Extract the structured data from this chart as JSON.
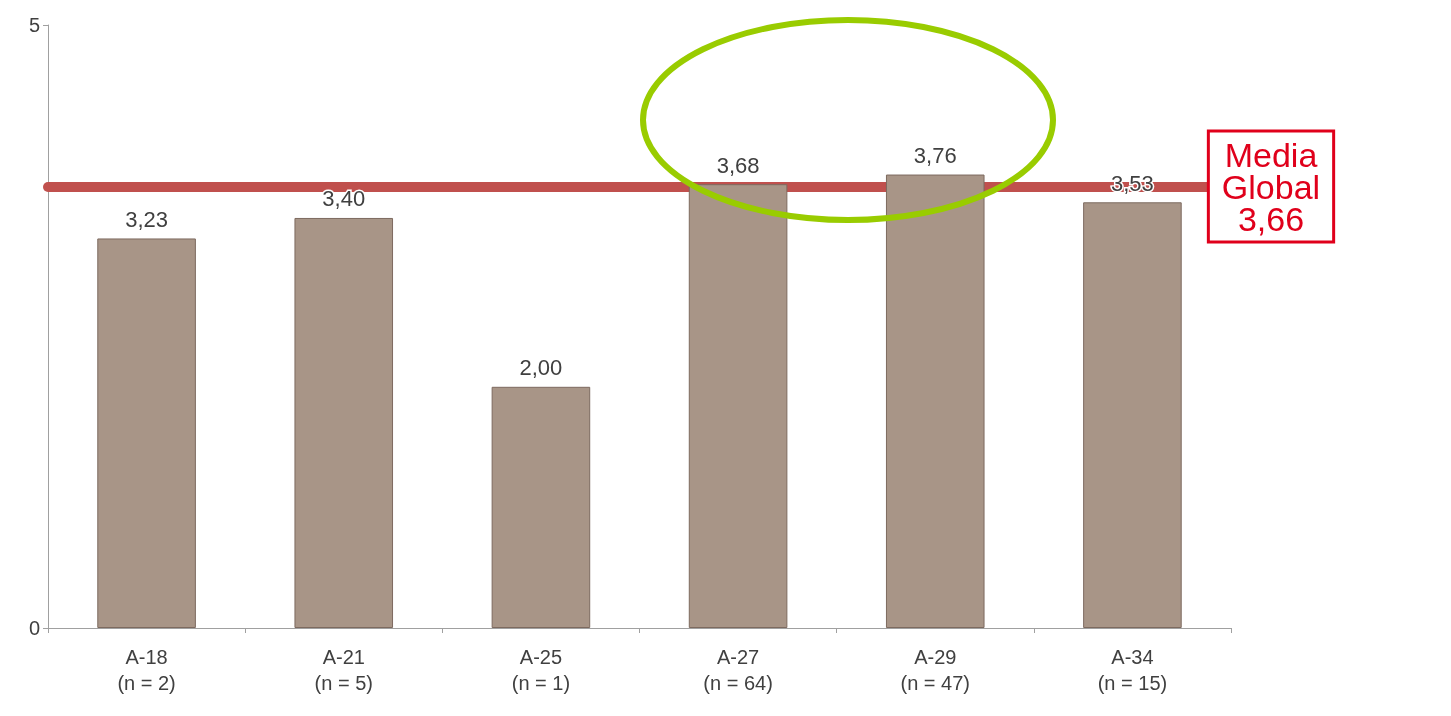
{
  "chart_data": {
    "type": "bar",
    "categories": [
      "A-18\n(n = 2)",
      "A-21\n(n = 5)",
      "A-25\n(n = 1)",
      "A-27\n(n = 64)",
      "A-29\n(n = 47)",
      "A-34\n(n = 15)"
    ],
    "values": [
      3.23,
      3.4,
      2.0,
      3.68,
      3.76,
      3.53
    ],
    "value_labels": [
      "3,23",
      "3,40",
      "2,00",
      "3,68",
      "3,76",
      "3,53"
    ],
    "color": "#a89587",
    "ylim": [
      0,
      5
    ],
    "yticks": [
      0,
      5
    ],
    "grid": false,
    "ref_lines": [
      {
        "axis": "y",
        "value": 3.66,
        "label": "Media Global 3,66",
        "color": "#c0504d"
      }
    ]
  }
}
